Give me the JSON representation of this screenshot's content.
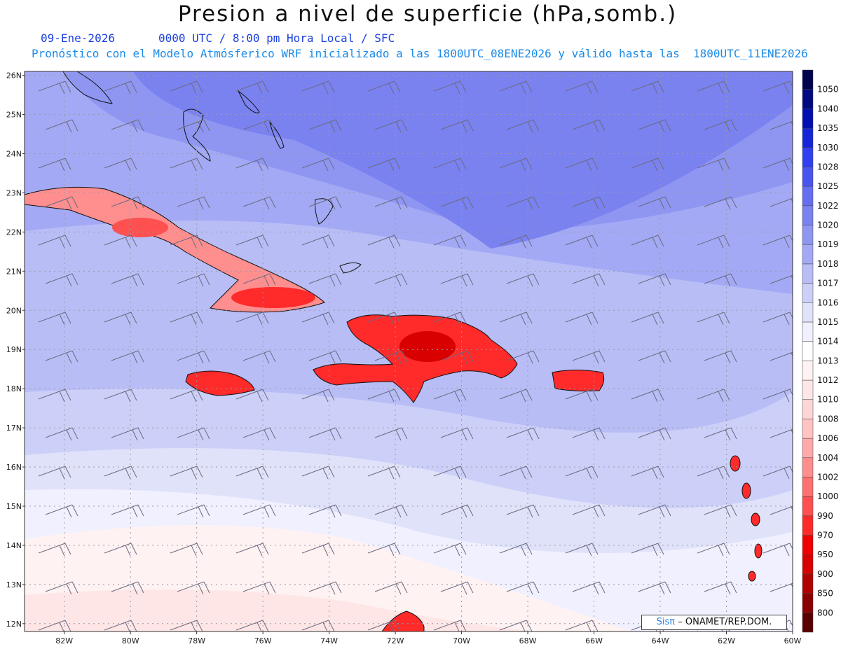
{
  "header": {
    "title": "Presion a nivel de superficie (hPa,somb.)",
    "date": "09-Ene-2026",
    "valid_time": "0000 UTC / 8:00 pm Hora Local / SFC",
    "forecast_note": "Pronóstico con el Modelo Atmósferico WRF inicializado a las 1800UTC_08ENE2026 y válido hasta las  1800UTC_11ENE2026"
  },
  "map": {
    "lon_range": [
      -83.2,
      -60
    ],
    "lat_range": [
      11.8,
      26.1
    ],
    "lon_ticks": [
      "82W",
      "80W",
      "78W",
      "76W",
      "74W",
      "72W",
      "70W",
      "68W",
      "66W",
      "64W",
      "62W",
      "60W"
    ],
    "lat_ticks": [
      "12N",
      "13N",
      "14N",
      "15N",
      "16N",
      "17N",
      "18N",
      "19N",
      "20N",
      "21N",
      "22N",
      "23N",
      "24N",
      "25N",
      "26N"
    ],
    "grid": true
  },
  "colorbar": {
    "levels": [
      "800",
      "850",
      "900",
      "950",
      "970",
      "990",
      "1000",
      "1002",
      "1004",
      "1006",
      "1008",
      "1010",
      "1012",
      "1013",
      "1014",
      "1015",
      "1016",
      "1017",
      "1018",
      "1019",
      "1020",
      "1022",
      "1025",
      "1028",
      "1030",
      "1035",
      "1040",
      "1050"
    ],
    "colors": [
      "#5a0000",
      "#8b0000",
      "#b00000",
      "#d80000",
      "#f00000",
      "#ff2a2a",
      "#ff5050",
      "#ff7070",
      "#ff8e8e",
      "#ffaaaa",
      "#ffc3c3",
      "#ffd6d6",
      "#ffe6e6",
      "#fff2f2",
      "#ffffff",
      "#f0f0ff",
      "#e0e2fa",
      "#ccd0f8",
      "#b8bdf6",
      "#a3a9f4",
      "#8e96f2",
      "#7a82f0",
      "#656ef0",
      "#4a55f0",
      "#3040f0",
      "#1525d8",
      "#0010b0",
      "#000a80",
      "#00064e"
    ]
  },
  "credit": {
    "brand": "Sisπ",
    "text": "– ONAMET/REP.DOM."
  }
}
